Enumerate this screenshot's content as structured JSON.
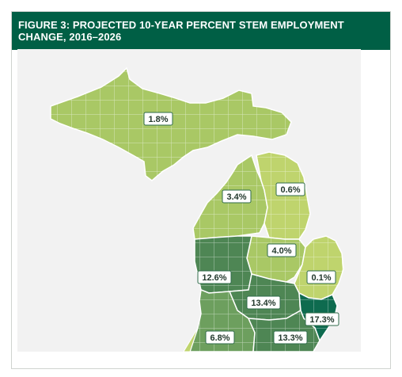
{
  "figure": {
    "title": "FIGURE 3: PROJECTED 10-YEAR PERCENT STEM EMPLOYMENT CHANGE, 2016–2026"
  },
  "colors": {
    "header_bg": "#005f45",
    "panel_bg": "#f2f2f2",
    "region_light": "#bfd46d",
    "region_mid": "#a9c865",
    "region_green": "#6d9f5e",
    "region_dark": "#4e8654",
    "region_darkest": "#0e6b4f"
  },
  "map_data": {
    "type": "choropleth",
    "regions": [
      {
        "name": "upper-peninsula",
        "value": "1.8%"
      },
      {
        "name": "northwest-lower",
        "value": "3.4%"
      },
      {
        "name": "northeast-lower",
        "value": "0.6%"
      },
      {
        "name": "central-lower",
        "value": "4.0%"
      },
      {
        "name": "thumb",
        "value": "0.1%"
      },
      {
        "name": "west-michigan",
        "value": "12.6%"
      },
      {
        "name": "south-central",
        "value": "13.4%"
      },
      {
        "name": "southwest",
        "value": "6.8%"
      },
      {
        "name": "southeast",
        "value": "13.3%"
      },
      {
        "name": "detroit-metro",
        "value": "17.3%"
      }
    ]
  }
}
